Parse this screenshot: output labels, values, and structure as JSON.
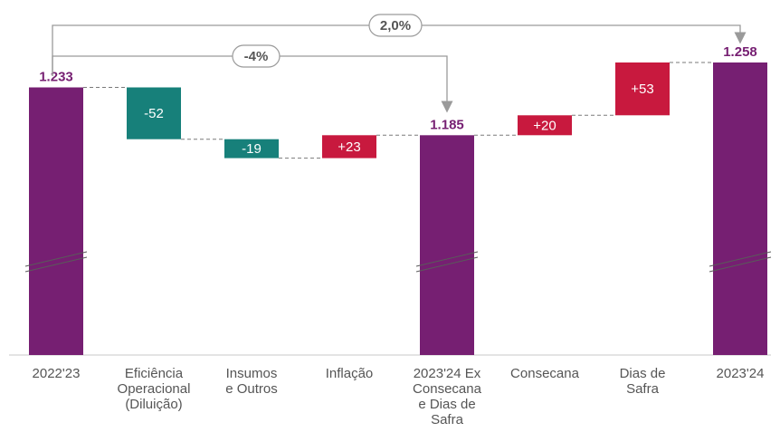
{
  "chart_data": {
    "type": "waterfall",
    "categories": [
      "2022'23",
      "Eficiência Operacional (Diluição)",
      "Insumos e Outros",
      "Inflação",
      "2023'24 Ex Consecana e Dias de Safra",
      "Consecana",
      "Dias de Safra",
      "2023'24"
    ],
    "category_lines": [
      [
        "2022'23"
      ],
      [
        "Eficiência",
        "Operacional",
        "(Diluição)"
      ],
      [
        "Insumos",
        "e Outros"
      ],
      [
        "Inflação"
      ],
      [
        "2023'24 Ex",
        "Consecana",
        "e Dias de",
        "Safra"
      ],
      [
        "Consecana"
      ],
      [
        "Dias de",
        "Safra"
      ],
      [
        "2023'24"
      ]
    ],
    "values": [
      1233,
      -52,
      -19,
      23,
      1185,
      20,
      53,
      1258
    ],
    "kinds": [
      "total",
      "delta",
      "delta",
      "delta",
      "total",
      "delta",
      "delta",
      "total"
    ],
    "labels": [
      "1.233",
      "-52",
      "-19",
      "+23",
      "1.185",
      "+20",
      "+53",
      "1.258"
    ],
    "axis_break": true,
    "annotations": [
      {
        "text": "2,0%",
        "from": "2022'23",
        "to": "2023'24"
      },
      {
        "text": "-4%",
        "from": "2022'23",
        "to": "2023'24 Ex Consecana e Dias de Safra"
      }
    ],
    "colors": {
      "total": "#761f72",
      "decrease": "#17807a",
      "increase": "#c8193e",
      "total_label": "#761f72",
      "connector": "#7a7a7a",
      "arrow": "#9a9a9a",
      "baseline": "#c8c8c8"
    }
  }
}
